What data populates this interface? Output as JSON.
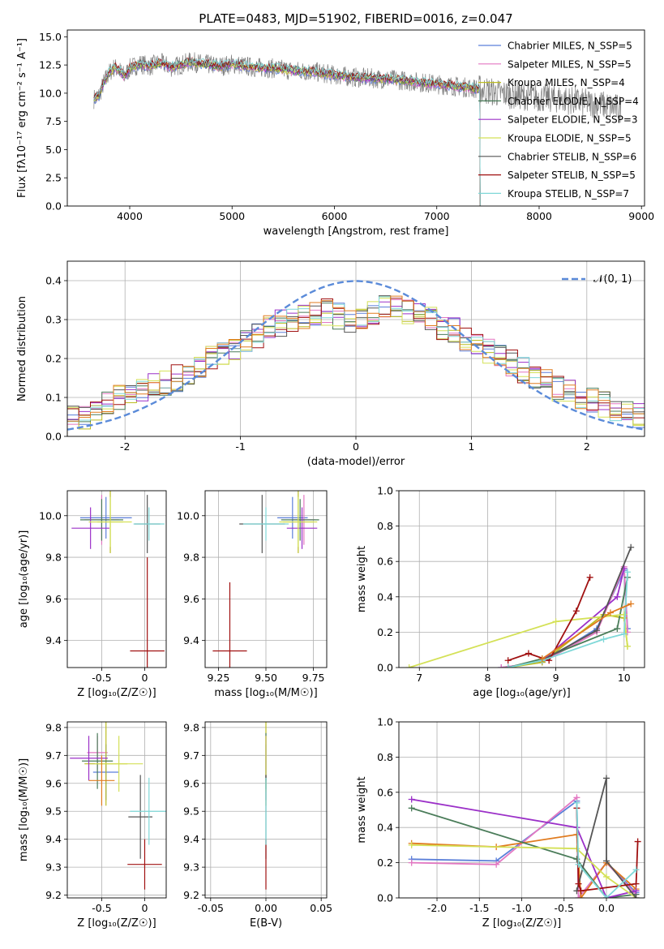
{
  "chart_data": [
    {
      "type": "line",
      "title": "PLATE=0483, MJD=51902, FIBERID=0016, z=0.047",
      "xlabel": "wavelength [Angstrom, rest frame]",
      "ylabel": "Flux [fλ10⁻¹⁷ erg cm⁻² s⁻¹ A⁻¹]",
      "xlim": [
        3390,
        9030
      ],
      "ylim": [
        0,
        15.6
      ],
      "xticks": [
        4000,
        5000,
        6000,
        7000,
        8000,
        9000
      ],
      "yticks": [
        0.0,
        2.5,
        5.0,
        7.5,
        10.0,
        12.5,
        15.0
      ],
      "grid": false,
      "legend": "top-right",
      "observed": {
        "x": [
          3650,
          3700,
          3750,
          3800,
          3850,
          3900,
          3950,
          4000,
          4100,
          4200,
          4300,
          4400,
          4500,
          4600,
          4700,
          4800,
          4900,
          5000,
          5200,
          5400,
          5600,
          5800,
          6000,
          6200,
          6400,
          6600,
          6800,
          7000,
          7200,
          7400,
          7600,
          7800,
          8000,
          8200,
          8400,
          8600,
          8800
        ],
        "y": [
          9.5,
          9.8,
          11.0,
          11.8,
          12.3,
          12.0,
          11.5,
          12.2,
          12.6,
          12.4,
          12.7,
          12.3,
          12.5,
          12.8,
          12.6,
          12.5,
          12.4,
          12.6,
          12.3,
          12.2,
          12.0,
          11.9,
          11.6,
          11.4,
          11.3,
          11.2,
          11.0,
          10.8,
          10.6,
          10.4,
          10.0,
          9.8,
          9.6,
          9.5,
          9.2,
          9.0,
          8.6
        ]
      },
      "series": [
        {
          "name": "Chabrier MILES, N_SSP=5",
          "color": "#5b7fd9"
        },
        {
          "name": "Salpeter MILES, N_SSP=5",
          "color": "#e377c2"
        },
        {
          "name": "Kroupa MILES, N_SSP=4",
          "color": "#bcbd22"
        },
        {
          "name": "Chabrier ELODIE, N_SSP=4",
          "color": "#4a7c59"
        },
        {
          "name": "Salpeter ELODIE, N_SSP=3",
          "color": "#9b30c8"
        },
        {
          "name": "Kroupa ELODIE, N_SSP=5",
          "color": "#d4e157"
        },
        {
          "name": "Chabrier STELIB, N_SSP=6",
          "color": "#555555"
        },
        {
          "name": "Salpeter STELIB, N_SSP=5",
          "color": "#a01010"
        },
        {
          "name": "Kroupa STELIB, N_SSP=7",
          "color": "#7fd8d8"
        }
      ]
    },
    {
      "type": "bar",
      "xlabel": "(data-model)/error",
      "ylabel": "Normed distribution",
      "xlim": [
        -2.5,
        2.5
      ],
      "ylim": [
        0,
        0.45
      ],
      "xticks": [
        -2,
        -1,
        0,
        1,
        2
      ],
      "yticks": [
        0.0,
        0.1,
        0.2,
        0.3,
        0.4
      ],
      "grid": true,
      "legend": "top-right",
      "bin_edges_start": -2.5,
      "bin_width": 0.1,
      "hist_values": [
        0.05,
        0.05,
        0.07,
        0.09,
        0.1,
        0.11,
        0.12,
        0.13,
        0.14,
        0.15,
        0.16,
        0.18,
        0.2,
        0.22,
        0.23,
        0.25,
        0.26,
        0.28,
        0.29,
        0.3,
        0.31,
        0.31,
        0.32,
        0.31,
        0.3,
        0.31,
        0.32,
        0.33,
        0.33,
        0.32,
        0.31,
        0.3,
        0.28,
        0.27,
        0.25,
        0.24,
        0.22,
        0.21,
        0.19,
        0.17,
        0.15,
        0.14,
        0.12,
        0.11,
        0.1,
        0.09,
        0.08,
        0.07,
        0.06,
        0.05
      ],
      "gaussian": {
        "name": "𝒩(0, 1)",
        "mean": 0,
        "sigma": 1,
        "color": "#5b8bd9"
      }
    },
    {
      "type": "scatter",
      "xlabel": "Z [log₁₀(Z/Z☉)]",
      "ylabel": "age  [log₁₀(age/yr)]",
      "xlim": [
        -0.9,
        0.25
      ],
      "ylim": [
        9.27,
        10.12
      ],
      "xticks": [
        -0.5,
        0.0
      ],
      "yticks": [
        9.4,
        9.6,
        9.8,
        10.0
      ],
      "grid": true,
      "points": [
        {
          "x": -0.45,
          "y": 9.99,
          "xerr": 0.3,
          "yerr": 0.1,
          "color": "#5b7fd9"
        },
        {
          "x": -0.5,
          "y": 9.98,
          "xerr": 0.2,
          "yerr": 0.12,
          "color": "#e377c2"
        },
        {
          "x": -0.4,
          "y": 9.97,
          "xerr": 0.15,
          "yerr": 0.15,
          "color": "#bcbd22"
        },
        {
          "x": -0.5,
          "y": 9.98,
          "xerr": 0.25,
          "yerr": 0.1,
          "color": "#4a7c59"
        },
        {
          "x": -0.63,
          "y": 9.94,
          "xerr": 0.22,
          "yerr": 0.1,
          "color": "#9b30c8"
        },
        {
          "x": -0.4,
          "y": 9.97,
          "xerr": 0.25,
          "yerr": 0.12,
          "color": "#d4e157"
        },
        {
          "x": 0.03,
          "y": 9.96,
          "xerr": 0.15,
          "yerr": 0.14,
          "color": "#555555"
        },
        {
          "x": 0.03,
          "y": 9.35,
          "xerr": 0.2,
          "yerr": 0.45,
          "color": "#a01010"
        },
        {
          "x": 0.05,
          "y": 9.96,
          "xerr": 0.18,
          "yerr": 0.08,
          "color": "#7fd8d8"
        }
      ]
    },
    {
      "type": "scatter",
      "xlabel": "mass [log₁₀(M/M☉)]",
      "ylabel": "",
      "xlim": [
        9.18,
        9.82
      ],
      "ylim": [
        9.27,
        10.12
      ],
      "xticks": [
        9.25,
        9.5,
        9.75
      ],
      "yticks": [
        9.4,
        9.6,
        9.8,
        10.0
      ],
      "grid": true,
      "points": [
        {
          "x": 9.64,
          "y": 9.99,
          "xerr": 0.08,
          "yerr": 0.1,
          "color": "#5b7fd9"
        },
        {
          "x": 9.7,
          "y": 9.98,
          "xerr": 0.06,
          "yerr": 0.12,
          "color": "#e377c2"
        },
        {
          "x": 9.67,
          "y": 9.97,
          "xerr": 0.08,
          "yerr": 0.15,
          "color": "#bcbd22"
        },
        {
          "x": 9.68,
          "y": 9.98,
          "xerr": 0.1,
          "yerr": 0.1,
          "color": "#4a7c59"
        },
        {
          "x": 9.69,
          "y": 9.94,
          "xerr": 0.08,
          "yerr": 0.1,
          "color": "#9b30c8"
        },
        {
          "x": 9.67,
          "y": 9.97,
          "xerr": 0.1,
          "yerr": 0.12,
          "color": "#d4e157"
        },
        {
          "x": 9.48,
          "y": 9.96,
          "xerr": 0.12,
          "yerr": 0.14,
          "color": "#555555"
        },
        {
          "x": 9.31,
          "y": 9.35,
          "xerr": 0.09,
          "yerr": 0.33,
          "color": "#a01010"
        },
        {
          "x": 9.5,
          "y": 9.96,
          "xerr": 0.12,
          "yerr": 0.08,
          "color": "#7fd8d8"
        }
      ]
    },
    {
      "type": "line",
      "xlabel": "age  [log₁₀(age/yr)]",
      "ylabel": "mass weight",
      "xlim": [
        6.7,
        10.3
      ],
      "ylim": [
        0,
        1.0
      ],
      "xticks": [
        7,
        8,
        9,
        10
      ],
      "yticks": [
        0.0,
        0.2,
        0.4,
        0.6,
        0.8,
        1.0
      ],
      "grid": true,
      "series": [
        {
          "color": "#5b7fd9",
          "x": [
            8.2,
            8.8,
            9.6,
            10.0,
            10.05
          ],
          "y": [
            0.0,
            0.03,
            0.22,
            0.55,
            0.22
          ]
        },
        {
          "color": "#e377c2",
          "x": [
            8.2,
            8.8,
            9.6,
            10.0,
            10.05
          ],
          "y": [
            0.0,
            0.03,
            0.2,
            0.57,
            0.2
          ]
        },
        {
          "color": "#bcbd22",
          "x": [
            8.3,
            8.8,
            9.7,
            10.0,
            10.05
          ],
          "y": [
            0.0,
            0.03,
            0.3,
            0.28,
            0.12
          ]
        },
        {
          "color": "#4a7c59",
          "x": [
            8.3,
            8.8,
            9.9,
            10.05
          ],
          "y": [
            0.0,
            0.05,
            0.22,
            0.51
          ]
        },
        {
          "color": "#9b30c8",
          "x": [
            8.8,
            9.9,
            10.0
          ],
          "y": [
            0.04,
            0.4,
            0.56
          ]
        },
        {
          "color": "#d4e157",
          "x": [
            6.85,
            9.0,
            10.0,
            10.05
          ],
          "y": [
            0.0,
            0.26,
            0.3,
            0.12
          ]
        },
        {
          "color": "#555555",
          "x": [
            8.8,
            9.6,
            10.1
          ],
          "y": [
            0.04,
            0.21,
            0.68
          ]
        },
        {
          "color": "#a01010",
          "x": [
            8.3,
            8.6,
            8.9,
            9.3,
            9.5
          ],
          "y": [
            0.04,
            0.08,
            0.04,
            0.32,
            0.51
          ]
        },
        {
          "color": "#7fd8d8",
          "x": [
            8.3,
            8.8,
            9.7,
            10.0,
            10.05
          ],
          "y": [
            0.0,
            0.04,
            0.16,
            0.19,
            0.54
          ]
        },
        {
          "color": "#e07b1f",
          "x": [
            8.8,
            9.8,
            10.1
          ],
          "y": [
            0.05,
            0.31,
            0.36
          ]
        }
      ]
    },
    {
      "type": "scatter",
      "xlabel": "Z [log₁₀(Z/Z☉)]",
      "ylabel": "mass [log₁₀(M/M☉)]",
      "xlim": [
        -0.9,
        0.25
      ],
      "ylim": [
        9.19,
        9.82
      ],
      "xticks": [
        -0.5,
        0.0
      ],
      "yticks": [
        9.2,
        9.3,
        9.4,
        9.5,
        9.6,
        9.7,
        9.8
      ],
      "grid": true,
      "points": [
        {
          "x": -0.45,
          "y": 9.64,
          "xerr": 0.15,
          "yerr": 0.1,
          "color": "#5b7fd9"
        },
        {
          "x": -0.55,
          "y": 9.71,
          "xerr": 0.12,
          "yerr": 0.06,
          "color": "#e377c2"
        },
        {
          "x": -0.45,
          "y": 9.67,
          "xerr": 0.25,
          "yerr": 0.15,
          "color": "#bcbd22"
        },
        {
          "x": -0.55,
          "y": 9.68,
          "xerr": 0.18,
          "yerr": 0.1,
          "color": "#4a7c59"
        },
        {
          "x": -0.65,
          "y": 9.69,
          "xerr": 0.22,
          "yerr": 0.08,
          "color": "#9b30c8"
        },
        {
          "x": -0.3,
          "y": 9.67,
          "xerr": 0.28,
          "yerr": 0.1,
          "color": "#d4e157"
        },
        {
          "x": -0.05,
          "y": 9.48,
          "xerr": 0.14,
          "yerr": 0.15,
          "color": "#555555"
        },
        {
          "x": 0.0,
          "y": 9.31,
          "xerr": 0.2,
          "yerr": 0.09,
          "color": "#a01010"
        },
        {
          "x": 0.05,
          "y": 9.5,
          "xerr": 0.22,
          "yerr": 0.12,
          "color": "#7fd8d8"
        },
        {
          "x": -0.5,
          "y": 9.61,
          "xerr": 0.15,
          "yerr": 0.09,
          "color": "#e07b1f"
        }
      ]
    },
    {
      "type": "scatter",
      "xlabel": "E(B-V)",
      "ylabel": "",
      "xlim": [
        -0.055,
        0.055
      ],
      "ylim": [
        9.19,
        9.82
      ],
      "xticks": [
        -0.05,
        0.0,
        0.05
      ],
      "yticks": [
        9.2,
        9.3,
        9.4,
        9.5,
        9.6,
        9.7,
        9.8
      ],
      "grid": true,
      "points": [
        {
          "x": 0.0,
          "y": 9.64,
          "xerr": 0,
          "yerr": 0.1,
          "color": "#5b7fd9"
        },
        {
          "x": 0.0,
          "y": 9.71,
          "xerr": 0,
          "yerr": 0.06,
          "color": "#e377c2"
        },
        {
          "x": 0.0,
          "y": 9.67,
          "xerr": 0,
          "yerr": 0.15,
          "color": "#bcbd22"
        },
        {
          "x": 0.0,
          "y": 9.68,
          "xerr": 0,
          "yerr": 0.1,
          "color": "#4a7c59"
        },
        {
          "x": 0.0,
          "y": 9.69,
          "xerr": 0,
          "yerr": 0.08,
          "color": "#9b30c8"
        },
        {
          "x": 0.0,
          "y": 9.67,
          "xerr": 0,
          "yerr": 0.1,
          "color": "#d4e157"
        },
        {
          "x": 0.0,
          "y": 9.48,
          "xerr": 0,
          "yerr": 0.15,
          "color": "#555555"
        },
        {
          "x": 0.0,
          "y": 9.31,
          "xerr": 0,
          "yerr": 0.09,
          "color": "#a01010"
        },
        {
          "x": 0.0,
          "y": 9.5,
          "xerr": 0,
          "yerr": 0.12,
          "color": "#7fd8d8"
        }
      ]
    },
    {
      "type": "line",
      "xlabel": "Z [log₁₀(Z/Z☉)]",
      "ylabel": "mass weight",
      "xlim": [
        -2.45,
        0.45
      ],
      "ylim": [
        0,
        1.0
      ],
      "xticks": [
        -2.0,
        -1.5,
        -1.0,
        -0.5,
        0.0
      ],
      "yticks": [
        0.0,
        0.2,
        0.4,
        0.6,
        0.8,
        1.0
      ],
      "grid": true,
      "series": [
        {
          "color": "#5b7fd9",
          "x": [
            -2.3,
            -1.3,
            -0.35,
            -0.33,
            0.0,
            0.35
          ],
          "y": [
            0.22,
            0.21,
            0.55,
            0.0,
            0.2,
            0.03
          ]
        },
        {
          "color": "#e377c2",
          "x": [
            -2.3,
            -1.3,
            -0.35,
            -0.33,
            0.0,
            0.35
          ],
          "y": [
            0.2,
            0.19,
            0.57,
            0.0,
            0.2,
            0.02
          ]
        },
        {
          "color": "#e07b1f",
          "x": [
            -2.3,
            -1.3,
            -0.35,
            -0.3,
            0.0,
            0.35
          ],
          "y": [
            0.31,
            0.29,
            0.36,
            0.0,
            0.2,
            0.05
          ]
        },
        {
          "color": "#4a7c59",
          "x": [
            -2.3,
            -0.35,
            0.0,
            0.35
          ],
          "y": [
            0.51,
            0.22,
            0.0,
            0.02
          ]
        },
        {
          "color": "#9b30c8",
          "x": [
            -2.3,
            -0.35,
            0.0,
            0.35
          ],
          "y": [
            0.56,
            0.4,
            0.0,
            0.04
          ]
        },
        {
          "color": "#d4e157",
          "x": [
            -2.3,
            -0.35,
            0.0,
            0.35
          ],
          "y": [
            0.3,
            0.28,
            0.12,
            0.0
          ]
        },
        {
          "color": "#555555",
          "x": [
            -0.35,
            0.0,
            0.0,
            0.35
          ],
          "y": [
            0.04,
            0.68,
            0.21,
            0.0
          ]
        },
        {
          "color": "#a01010",
          "x": [
            -0.35,
            -0.33,
            -0.3,
            0.35,
            0.37
          ],
          "y": [
            0.51,
            0.08,
            0.04,
            0.08,
            0.32
          ]
        },
        {
          "color": "#7fd8d8",
          "x": [
            -0.35,
            -0.33,
            0.0,
            0.35
          ],
          "y": [
            0.54,
            0.19,
            0.0,
            0.16
          ]
        }
      ]
    }
  ]
}
